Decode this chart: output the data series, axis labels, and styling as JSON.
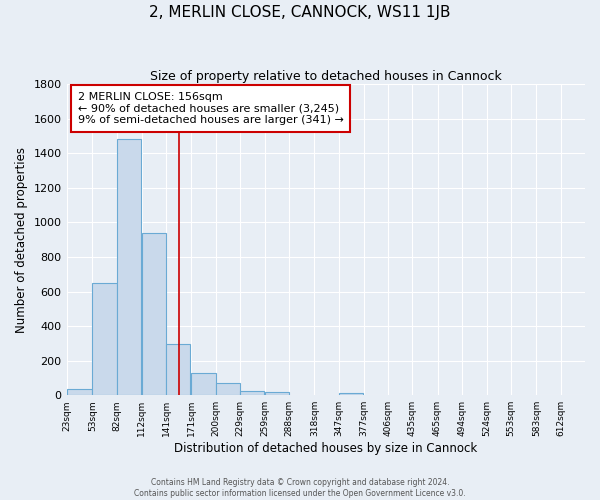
{
  "title": "2, MERLIN CLOSE, CANNOCK, WS11 1JB",
  "subtitle": "Size of property relative to detached houses in Cannock",
  "xlabel": "Distribution of detached houses by size in Cannock",
  "ylabel": "Number of detached properties",
  "bins": [
    "23sqm",
    "53sqm",
    "82sqm",
    "112sqm",
    "141sqm",
    "171sqm",
    "200sqm",
    "229sqm",
    "259sqm",
    "288sqm",
    "318sqm",
    "347sqm",
    "377sqm",
    "406sqm",
    "435sqm",
    "465sqm",
    "494sqm",
    "524sqm",
    "553sqm",
    "583sqm",
    "612sqm"
  ],
  "bin_edges": [
    23,
    53,
    82,
    112,
    141,
    171,
    200,
    229,
    259,
    288,
    318,
    347,
    377,
    406,
    435,
    465,
    494,
    524,
    553,
    583,
    612
  ],
  "bin_width": 29,
  "values": [
    35,
    650,
    1480,
    940,
    295,
    130,
    70,
    25,
    20,
    0,
    0,
    15,
    0,
    0,
    0,
    0,
    0,
    0,
    0,
    0,
    0
  ],
  "bar_color": "#c9d9eb",
  "bar_edge_color": "#6aaad4",
  "vline_x": 156,
  "vline_color": "#cc0000",
  "annotation_text": "2 MERLIN CLOSE: 156sqm\n← 90% of detached houses are smaller (3,245)\n9% of semi-detached houses are larger (341) →",
  "annotation_box_color": "#ffffff",
  "annotation_box_edge": "#cc0000",
  "ylim": [
    0,
    1800
  ],
  "yticks": [
    0,
    200,
    400,
    600,
    800,
    1000,
    1200,
    1400,
    1600,
    1800
  ],
  "bg_color": "#e8eef5",
  "grid_color": "#ffffff",
  "footer1": "Contains HM Land Registry data © Crown copyright and database right 2024.",
  "footer2": "Contains public sector information licensed under the Open Government Licence v3.0."
}
